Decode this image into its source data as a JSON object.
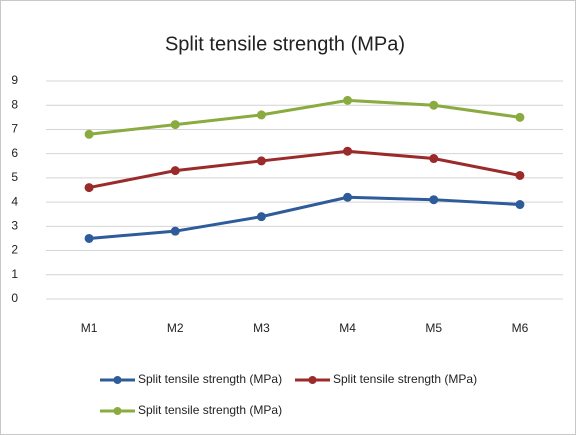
{
  "chart_data": {
    "type": "line",
    "title": "Split tensile strength (MPa)",
    "categories": [
      "M1",
      "M2",
      "M3",
      "M4",
      "M5",
      "M6"
    ],
    "series": [
      {
        "name": "Split tensile strength (MPa)",
        "color": "#2e5c9a",
        "values": [
          2.5,
          2.8,
          3.4,
          4.2,
          4.1,
          3.9
        ]
      },
      {
        "name": "Split tensile strength (MPa)",
        "color": "#9b2a2a",
        "values": [
          4.6,
          5.3,
          5.7,
          6.1,
          5.8,
          5.1
        ]
      },
      {
        "name": "Split tensile strength (MPa)",
        "color": "#8aab3f",
        "values": [
          6.8,
          7.2,
          7.6,
          8.2,
          8.0,
          7.5
        ]
      }
    ],
    "ylim": [
      0,
      9
    ],
    "yticks": [
      0,
      1,
      2,
      3,
      4,
      5,
      6,
      7,
      8,
      9
    ],
    "grid": true,
    "legend": "bottom"
  }
}
